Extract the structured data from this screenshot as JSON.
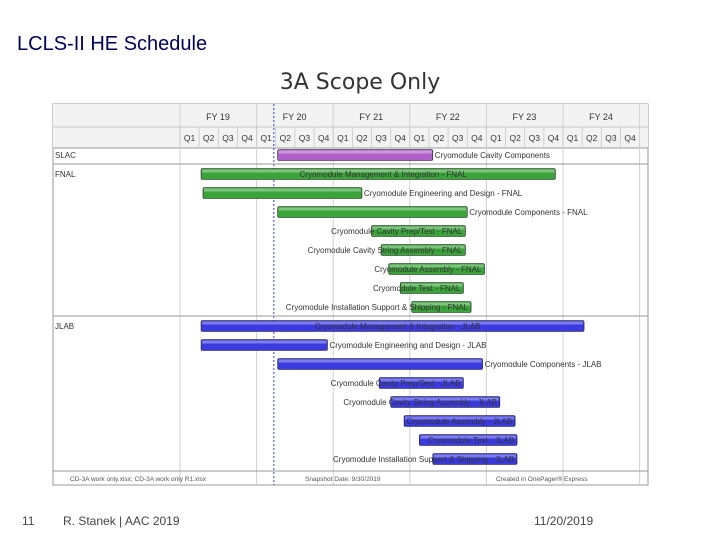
{
  "slide": {
    "title": "LCLS-II HE Schedule",
    "page_number": "11",
    "author": "R. Stanek | AAC 2019",
    "date": "11/20/2019"
  },
  "chart_data": {
    "type": "gantt",
    "title": "3A Scope Only",
    "fiscal_years": [
      "FY 19",
      "FY 20",
      "FY 21",
      "FY 22",
      "FY 23",
      "FY 24"
    ],
    "quarters": [
      "Q1",
      "Q2",
      "Q3",
      "Q4",
      "Q1",
      "Q2",
      "Q3",
      "Q4",
      "Q1",
      "Q2",
      "Q3",
      "Q4",
      "Q1",
      "Q2",
      "Q3",
      "Q4",
      "Q1",
      "Q2",
      "Q3",
      "Q4",
      "Q1",
      "Q2",
      "Q3",
      "Q4"
    ],
    "groups": [
      {
        "name": "SLAC",
        "color": "#b060c8",
        "tasks": [
          {
            "label": "Cryomodule Cavity Components",
            "start": 5.1,
            "end": 13.2,
            "label_pos": "right"
          }
        ]
      },
      {
        "name": "FNAL",
        "color": "#3aa33a",
        "tasks": [
          {
            "label": "Cryomodule Management & Integration - FNAL",
            "start": 1.1,
            "end": 19.6,
            "label_pos": "inside"
          },
          {
            "label": "Cryomodule Engineering and Design - FNAL",
            "start": 1.2,
            "end": 9.5,
            "label_pos": "right"
          },
          {
            "label": "Cryomodule Components - FNAL",
            "start": 5.1,
            "end": 15.0,
            "label_pos": "right"
          },
          {
            "label": "Cryomodule Cavity Prep/Test - FNAL",
            "start": 10.0,
            "end": 14.9,
            "label_pos": "left"
          },
          {
            "label": "Cryomodule Cavity String Assembly - FNAL",
            "start": 10.5,
            "end": 14.9,
            "label_pos": "left"
          },
          {
            "label": "Cryomodule Assembly - FNAL",
            "start": 10.9,
            "end": 15.9,
            "label_pos": "left"
          },
          {
            "label": "Cryomodule Test - FNAL",
            "start": 11.5,
            "end": 14.8,
            "label_pos": "left"
          },
          {
            "label": "Cryomodule Installation Support & Shipping - FNAL",
            "start": 12.1,
            "end": 15.2,
            "label_pos": "left"
          }
        ]
      },
      {
        "name": "JLAB",
        "color": "#3a3ae0",
        "tasks": [
          {
            "label": "Cryomodule Management & Integration - JLAB",
            "start": 1.1,
            "end": 21.1,
            "label_pos": "inside"
          },
          {
            "label": "Cryomodule Engineering and Design - JLAB",
            "start": 1.1,
            "end": 7.7,
            "label_pos": "right"
          },
          {
            "label": "Cryomodule Components - JLAB",
            "start": 5.1,
            "end": 15.8,
            "label_pos": "right"
          },
          {
            "label": "Cryomodule Cavity Prep/Test - JLAB",
            "start": 10.4,
            "end": 14.8,
            "label_pos": "left"
          },
          {
            "label": "Cryomodule Cavity String Assembly - JLAB",
            "start": 11.0,
            "end": 16.7,
            "label_pos": "left"
          },
          {
            "label": "Cryomodule Assembly - JLAB",
            "start": 11.7,
            "end": 17.5,
            "label_pos": "left"
          },
          {
            "label": "Cryomodule Test - JLAB",
            "start": 12.5,
            "end": 17.6,
            "label_pos": "left"
          },
          {
            "label": "Cryomodule Installation Support & Shipping - JLAB",
            "start": 13.2,
            "end": 17.6,
            "label_pos": "left"
          }
        ]
      }
    ],
    "status_line": 4.9,
    "footer_left": "CD-3A work only.xlsx; CD-3A work only R1.xlsx",
    "footer_center": "Snapshot Date: 9/30/2019",
    "footer_right": "Created in OnePager® Express"
  }
}
